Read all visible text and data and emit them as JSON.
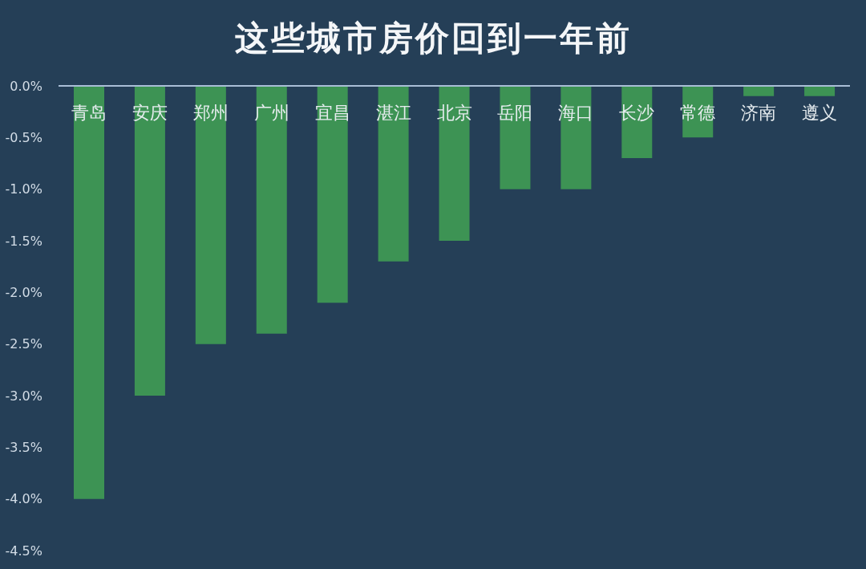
{
  "chart_data": {
    "type": "bar",
    "title": "这些城市房价回到一年前",
    "categories": [
      "青岛",
      "安庆",
      "郑州",
      "广州",
      "宜昌",
      "湛江",
      "北京",
      "岳阳",
      "海口",
      "长沙",
      "常德",
      "济南",
      "遵义"
    ],
    "values": [
      -4.0,
      -3.0,
      -2.5,
      -2.4,
      -2.1,
      -1.7,
      -1.5,
      -1.0,
      -1.0,
      -0.7,
      -0.5,
      -0.1,
      -0.1
    ],
    "color": "#3d9354",
    "ylim": [
      -4.5,
      0
    ],
    "yticks": [
      {
        "value": 0,
        "label": "0.0%"
      },
      {
        "value": -0.5,
        "label": "-0.5%"
      },
      {
        "value": -1.0,
        "label": "-1.0%"
      },
      {
        "value": -1.5,
        "label": "-1.5%"
      },
      {
        "value": -2.0,
        "label": "-2.0%"
      },
      {
        "value": -2.5,
        "label": "-2.5%"
      },
      {
        "value": -3.0,
        "label": "-3.0%"
      },
      {
        "value": -3.5,
        "label": "-3.5%"
      },
      {
        "value": -4.0,
        "label": "-4.0%"
      },
      {
        "value": -4.5,
        "label": "-4.5%"
      }
    ]
  }
}
